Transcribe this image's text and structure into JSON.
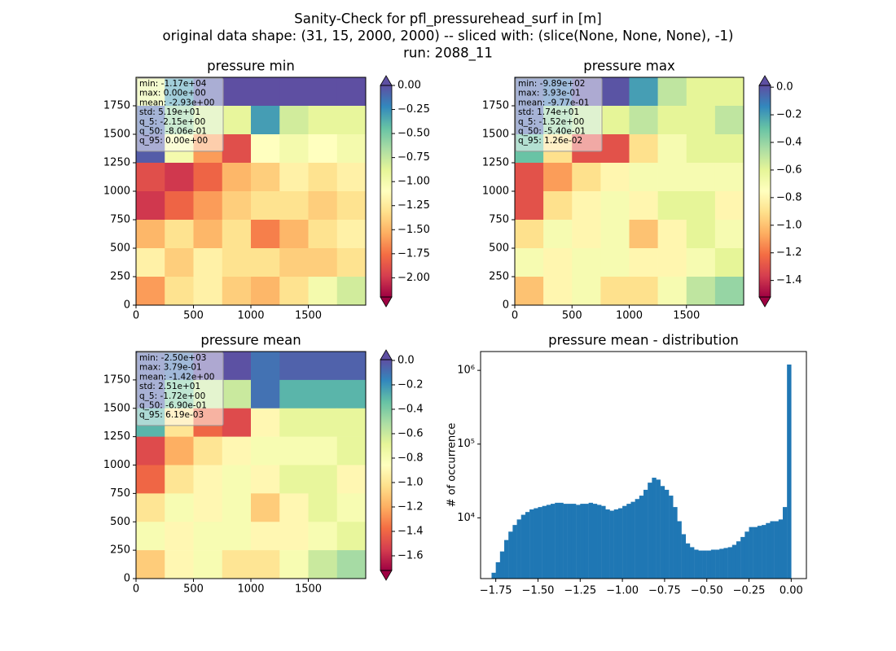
{
  "suptitle": [
    "Sanity-Check for pfl_pressurehead_surf in [m]",
    "original data shape: (31, 15, 2000, 2000) -- sliced with: (slice(None, None, None), -1)",
    "run: 2088_11"
  ],
  "colormap": [
    "#9e0142",
    "#d53e4f",
    "#f46d43",
    "#fdae61",
    "#fee08b",
    "#ffffbf",
    "#e6f598",
    "#abdda4",
    "#66c2a5",
    "#3288bd",
    "#5e4fa2"
  ],
  "chart_data": [
    {
      "type": "heatmap",
      "title": "pressure min",
      "stats": [
        "min: -1.17e+04",
        "max: 0.00e+00",
        "mean: -2.93e+00",
        "std: 5.19e+01",
        "q_5: -2.15e+00",
        "q_50: -8.06e-01",
        "q_95: 0.00e+00"
      ],
      "xlim": [
        0,
        2000
      ],
      "ylim": [
        0,
        2000
      ],
      "xticks": [
        0,
        500,
        1000,
        1500
      ],
      "yticks": [
        0,
        250,
        500,
        750,
        1000,
        1250,
        1500,
        1750
      ],
      "values": [
        [
          -0.9,
          -0.3,
          -0.05,
          0,
          0,
          0,
          0,
          0
        ],
        [
          -0.1,
          -0.6,
          -0.8,
          -0.9,
          -0.3,
          -0.8,
          -0.9,
          -0.9
        ],
        [
          -0.05,
          -1.0,
          -1.6,
          -1.9,
          -1.1,
          -1.0,
          -1.1,
          -1.0
        ],
        [
          -1.9,
          -2.0,
          -1.8,
          -1.5,
          -1.4,
          -1.2,
          -1.3,
          -1.2
        ],
        [
          -2.0,
          -1.8,
          -1.6,
          -1.4,
          -1.3,
          -1.3,
          -1.4,
          -1.3
        ],
        [
          -1.5,
          -1.3,
          -1.5,
          -1.3,
          -1.7,
          -1.5,
          -1.3,
          -1.2
        ],
        [
          -1.2,
          -1.4,
          -1.2,
          -1.3,
          -1.3,
          -1.4,
          -1.4,
          -1.3
        ],
        [
          -1.6,
          -1.3,
          -1.2,
          -1.4,
          -1.5,
          -1.3,
          -1.0,
          -0.8
        ]
      ],
      "colorbar": {
        "clim": [
          -2.2,
          0
        ],
        "extend": "both",
        "ticks": [
          {
            "value": 0,
            "label": "0.00"
          },
          {
            "value": -0.25,
            "label": "−0.25"
          },
          {
            "value": -0.5,
            "label": "−0.50"
          },
          {
            "value": -0.75,
            "label": "−0.75"
          },
          {
            "value": -1.0,
            "label": "−1.00"
          },
          {
            "value": -1.25,
            "label": "−1.25"
          },
          {
            "value": -1.5,
            "label": "−1.50"
          },
          {
            "value": -1.75,
            "label": "−1.75"
          },
          {
            "value": -2.0,
            "label": "−2.00"
          }
        ]
      }
    },
    {
      "type": "heatmap",
      "title": "pressure max",
      "stats": [
        "min: -9.89e+02",
        "max: 3.93e-01",
        "mean: -9.77e-01",
        "std: 1.74e+01",
        "q_5: -1.52e+00",
        "q_50: -5.40e-01",
        "q_95: 1.26e-02"
      ],
      "xlim": [
        0,
        2000
      ],
      "ylim": [
        0,
        2000
      ],
      "xticks": [
        0,
        500,
        1000,
        1500
      ],
      "yticks": [
        0,
        250,
        500,
        750,
        1000,
        1250,
        1500,
        1750
      ],
      "values": [
        [
          -0.05,
          -0.1,
          0,
          0,
          -0.2,
          -0.5,
          -0.6,
          -0.6
        ],
        [
          -0.05,
          -0.4,
          -0.5,
          -0.6,
          -0.5,
          -0.6,
          -0.6,
          -0.5
        ],
        [
          -0.3,
          -0.9,
          -1.3,
          -1.3,
          -0.9,
          -0.7,
          -0.6,
          -0.6
        ],
        [
          -1.3,
          -1.1,
          -0.9,
          -0.8,
          -0.7,
          -0.7,
          -0.7,
          -0.7
        ],
        [
          -1.3,
          -0.9,
          -0.8,
          -0.7,
          -0.8,
          -0.6,
          -0.6,
          -0.8
        ],
        [
          -0.9,
          -0.7,
          -0.8,
          -0.7,
          -1.0,
          -0.8,
          -0.6,
          -0.7
        ],
        [
          -0.7,
          -0.8,
          -0.7,
          -0.7,
          -0.8,
          -0.8,
          -0.7,
          -0.6
        ],
        [
          -1.0,
          -0.8,
          -0.7,
          -0.9,
          -0.9,
          -0.7,
          -0.5,
          -0.4
        ]
      ],
      "colorbar": {
        "clim": [
          -1.52,
          0.0126
        ],
        "extend": "both",
        "ticks": [
          {
            "value": 0,
            "label": "0.0"
          },
          {
            "value": -0.2,
            "label": "−0.2"
          },
          {
            "value": -0.4,
            "label": "−0.4"
          },
          {
            "value": -0.6,
            "label": "−0.6"
          },
          {
            "value": -0.8,
            "label": "−0.8"
          },
          {
            "value": -1.0,
            "label": "−1.0"
          },
          {
            "value": -1.2,
            "label": "−1.2"
          },
          {
            "value": -1.4,
            "label": "−1.4"
          }
        ]
      }
    },
    {
      "type": "heatmap",
      "title": "pressure mean",
      "stats": [
        "min: -2.50e+03",
        "max: 3.79e-01",
        "mean: -1.42e+00",
        "std: 2.51e+01",
        "q_5: -1.72e+00",
        "q_50: -6.90e-01",
        "q_95: 6.19e-03"
      ],
      "xlim": [
        0,
        2000
      ],
      "ylim": [
        0,
        2000
      ],
      "xticks": [
        0,
        500,
        1000,
        1500
      ],
      "yticks": [
        0,
        250,
        500,
        750,
        1000,
        1250,
        1500,
        1750
      ],
      "values": [
        [
          -0.05,
          -0.1,
          0,
          0,
          -0.1,
          -0.05,
          -0.05,
          -0.05
        ],
        [
          -0.05,
          -0.4,
          -0.6,
          -0.6,
          -0.1,
          -0.3,
          -0.3,
          -0.3
        ],
        [
          -0.3,
          -1.0,
          -1.4,
          -1.5,
          -0.9,
          -0.7,
          -0.7,
          -0.7
        ],
        [
          -1.5,
          -1.2,
          -1.0,
          -0.9,
          -0.8,
          -0.8,
          -0.8,
          -0.7
        ],
        [
          -1.4,
          -1.0,
          -0.9,
          -0.8,
          -0.9,
          -0.7,
          -0.7,
          -0.9
        ],
        [
          -1.0,
          -0.8,
          -0.9,
          -0.8,
          -1.1,
          -0.9,
          -0.7,
          -0.8
        ],
        [
          -0.8,
          -0.9,
          -0.8,
          -0.8,
          -0.9,
          -0.9,
          -0.8,
          -0.7
        ],
        [
          -1.1,
          -0.9,
          -0.8,
          -1.0,
          -1.0,
          -0.8,
          -0.6,
          -0.5
        ]
      ],
      "colorbar": {
        "clim": [
          -1.72,
          0.0062
        ],
        "extend": "both",
        "ticks": [
          {
            "value": 0,
            "label": "0.0"
          },
          {
            "value": -0.2,
            "label": "−0.2"
          },
          {
            "value": -0.4,
            "label": "−0.4"
          },
          {
            "value": -0.6,
            "label": "−0.6"
          },
          {
            "value": -0.8,
            "label": "−0.8"
          },
          {
            "value": -1.0,
            "label": "−1.0"
          },
          {
            "value": -1.2,
            "label": "−1.2"
          },
          {
            "value": -1.4,
            "label": "−1.4"
          },
          {
            "value": -1.6,
            "label": "−1.6"
          }
        ]
      }
    },
    {
      "type": "histogram",
      "title": "pressure mean - distribution",
      "ylabel": "# of occurrence",
      "color": "#1f77b4",
      "log_y": true,
      "xlim": [
        -1.84,
        0.09
      ],
      "ylim": [
        1500,
        1800000
      ],
      "xticks": [
        {
          "value": -1.75,
          "label": "−1.75"
        },
        {
          "value": -1.5,
          "label": "−1.50"
        },
        {
          "value": -1.25,
          "label": "−1.25"
        },
        {
          "value": -1.0,
          "label": "−1.00"
        },
        {
          "value": -0.75,
          "label": "−0.75"
        },
        {
          "value": -0.5,
          "label": "−0.50"
        },
        {
          "value": -0.25,
          "label": "−0.25"
        },
        {
          "value": 0,
          "label": "0.00"
        }
      ],
      "yticks": [
        {
          "value": 10000,
          "label": "10⁴"
        },
        {
          "value": 100000,
          "label": "10⁵"
        },
        {
          "value": 1000000,
          "label": "10⁶"
        }
      ],
      "bins": [
        -1.775,
        -1.75,
        -1.725,
        -1.7,
        -1.675,
        -1.65,
        -1.625,
        -1.6,
        -1.575,
        -1.55,
        -1.525,
        -1.5,
        -1.475,
        -1.45,
        -1.425,
        -1.4,
        -1.375,
        -1.35,
        -1.325,
        -1.3,
        -1.275,
        -1.25,
        -1.225,
        -1.2,
        -1.175,
        -1.15,
        -1.125,
        -1.1,
        -1.075,
        -1.05,
        -1.025,
        -1.0,
        -0.975,
        -0.95,
        -0.925,
        -0.9,
        -0.875,
        -0.85,
        -0.825,
        -0.8,
        -0.775,
        -0.75,
        -0.725,
        -0.7,
        -0.675,
        -0.65,
        -0.625,
        -0.6,
        -0.575,
        -0.55,
        -0.525,
        -0.5,
        -0.475,
        -0.45,
        -0.425,
        -0.4,
        -0.375,
        -0.35,
        -0.325,
        -0.3,
        -0.275,
        -0.25,
        -0.225,
        -0.2,
        -0.175,
        -0.15,
        -0.125,
        -0.1,
        -0.075,
        -0.05,
        -0.025,
        0
      ],
      "counts": [
        1800,
        2500,
        3500,
        5000,
        6500,
        8000,
        9500,
        11000,
        12000,
        13000,
        13500,
        14000,
        14500,
        15000,
        15500,
        16000,
        16000,
        15500,
        15500,
        15500,
        15000,
        15500,
        15500,
        16000,
        15500,
        15000,
        14500,
        13000,
        12500,
        13000,
        13500,
        14500,
        15500,
        16500,
        18000,
        20000,
        24000,
        30000,
        35000,
        33000,
        27000,
        24000,
        20000,
        14000,
        9000,
        6000,
        4500,
        4000,
        3700,
        3600,
        3600,
        3600,
        3700,
        3700,
        3800,
        3900,
        4000,
        4300,
        4800,
        5500,
        6500,
        7500,
        7500,
        7800,
        8000,
        8500,
        9000,
        9000,
        9500,
        14000,
        1200000
      ]
    }
  ]
}
